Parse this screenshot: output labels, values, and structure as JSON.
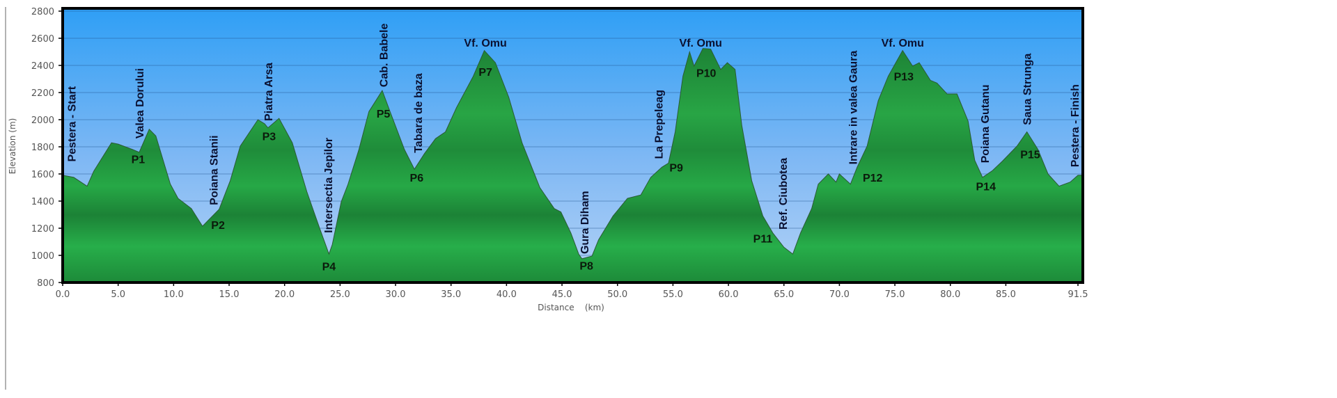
{
  "chart_data": {
    "type": "area",
    "xlabel": "Distance    (km)",
    "ylabel": "Elevation (m)",
    "xlim": [
      0,
      91.5
    ],
    "ylim": [
      800,
      2800
    ],
    "x_ticks": [
      "0.0",
      "5.0",
      "10.0",
      "15.0",
      "20.0",
      "25.0",
      "30.0",
      "35.0",
      "40.0",
      "45.0",
      "50.0",
      "55.0",
      "60.0",
      "65.0",
      "70.0",
      "75.0",
      "80.0",
      "85.0",
      "91.5"
    ],
    "x_tick_values": [
      0,
      5,
      10,
      15,
      20,
      25,
      30,
      35,
      40,
      45,
      50,
      55,
      60,
      65,
      70,
      75,
      80,
      85,
      91.5
    ],
    "y_ticks": [
      800,
      1000,
      1200,
      1400,
      1600,
      1800,
      2000,
      2200,
      2400,
      2600,
      2800
    ],
    "grid": true,
    "colors": {
      "sky_top": "#2f9ff5",
      "sky_bottom": "#a9cdf6",
      "fill_light": "#25b04a",
      "fill_dark": "#1a7d33",
      "line": "#2b5a35"
    },
    "profile": {
      "km": [
        0,
        1,
        2.2,
        2.8,
        4.4,
        5.0,
        6.3,
        6.9,
        7.8,
        8.4,
        9.7,
        10.4,
        11.6,
        12.6,
        13.2,
        14.1,
        15.1,
        16,
        17.6,
        18.2,
        18.5,
        19.5,
        20,
        20.7,
        22,
        23.2,
        24,
        24.3,
        25.1,
        25.7,
        26.7,
        27.6,
        28.8,
        29.5,
        30.8,
        31.7,
        32.6,
        33.6,
        34.5,
        35.5,
        37,
        38,
        39,
        40.2,
        41.4,
        43,
        44.3,
        44.9,
        45.8,
        46.5,
        46.8,
        47.7,
        48.3,
        49.6,
        50.9,
        52.1,
        53,
        54,
        54.6,
        55.2,
        55.9,
        56.5,
        56.9,
        57.7,
        58.4,
        59.3,
        59.9,
        60.6,
        61.2,
        62.1,
        63.1,
        64,
        65,
        65.8,
        66.5,
        67.5,
        68.1,
        69,
        69.7,
        70,
        71,
        71.6,
        72.5,
        73.5,
        74.4,
        75.7,
        76.6,
        77.2,
        78.2,
        78.8,
        79.7,
        80.6,
        81.6,
        82.2,
        82.9,
        83.8,
        84.7,
        86,
        86.9,
        87.9,
        88.8,
        89.8,
        90.8,
        91.5
      ],
      "elevation": [
        1590,
        1575,
        1510,
        1620,
        1830,
        1820,
        1780,
        1760,
        1930,
        1880,
        1525,
        1420,
        1345,
        1215,
        1265,
        1340,
        1550,
        1805,
        2000,
        1970,
        1940,
        2010,
        1935,
        1830,
        1470,
        1190,
        1010,
        1080,
        1395,
        1520,
        1780,
        2060,
        2215,
        2060,
        1780,
        1635,
        1750,
        1860,
        1910,
        2090,
        2320,
        2510,
        2420,
        2165,
        1830,
        1500,
        1345,
        1320,
        1165,
        1010,
        975,
        995,
        1115,
        1290,
        1420,
        1445,
        1575,
        1650,
        1680,
        1910,
        2320,
        2500,
        2395,
        2525,
        2520,
        2370,
        2420,
        2370,
        1960,
        1550,
        1290,
        1165,
        1060,
        1010,
        1165,
        1345,
        1525,
        1600,
        1540,
        1600,
        1525,
        1650,
        1805,
        2140,
        2320,
        2510,
        2395,
        2420,
        2290,
        2270,
        2190,
        2190,
        1990,
        1700,
        1575,
        1625,
        1695,
        1805,
        1910,
        1780,
        1600,
        1510,
        1540,
        1590
      ]
    },
    "place_labels": [
      {
        "text": "Pestera - Start",
        "km": 0.8,
        "elevation": 1690,
        "orientation": "vertical"
      },
      {
        "text": "Valea Dorului",
        "km": 6.9,
        "elevation": 1860,
        "orientation": "vertical"
      },
      {
        "text": "Poiana Stanii",
        "km": 13.6,
        "elevation": 1370,
        "orientation": "vertical"
      },
      {
        "text": "Piatra Arsa",
        "km": 18.5,
        "elevation": 1990,
        "orientation": "vertical"
      },
      {
        "text": "Intersectia Jepilor",
        "km": 23.9,
        "elevation": 1165,
        "orientation": "vertical"
      },
      {
        "text": "Cab. Babele",
        "km": 28.9,
        "elevation": 2240,
        "orientation": "vertical"
      },
      {
        "text": "Tabara de baza",
        "km": 32.0,
        "elevation": 1755,
        "orientation": "vertical"
      },
      {
        "text": "Vf. Omu",
        "km": 38.1,
        "elevation": 2570,
        "orientation": "horizontal"
      },
      {
        "text": "Gura Diham",
        "km": 47.0,
        "elevation": 1010,
        "orientation": "vertical"
      },
      {
        "text": "La Prepeleag",
        "km": 53.7,
        "elevation": 1710,
        "orientation": "vertical"
      },
      {
        "text": "Vf. Omu",
        "km": 57.5,
        "elevation": 2570,
        "orientation": "horizontal"
      },
      {
        "text": "Ref. Ciubotea",
        "km": 64.9,
        "elevation": 1190,
        "orientation": "vertical"
      },
      {
        "text": "Intrare in valea Gaura",
        "km": 71.2,
        "elevation": 1670,
        "orientation": "vertical"
      },
      {
        "text": "Vf. Omu",
        "km": 75.7,
        "elevation": 2570,
        "orientation": "horizontal"
      },
      {
        "text": "Poiana Gutanu",
        "km": 83.1,
        "elevation": 1680,
        "orientation": "vertical"
      },
      {
        "text": "Saua Strunga",
        "km": 86.9,
        "elevation": 1960,
        "orientation": "vertical"
      },
      {
        "text": "Pestera - Finish",
        "km": 91.2,
        "elevation": 1650,
        "orientation": "vertical"
      }
    ],
    "checkpoints": [
      {
        "text": "P1",
        "km": 6.8,
        "elevation": 1710
      },
      {
        "text": "P2",
        "km": 14.0,
        "elevation": 1225
      },
      {
        "text": "P3",
        "km": 18.6,
        "elevation": 1880
      },
      {
        "text": "P4",
        "km": 24.0,
        "elevation": 920
      },
      {
        "text": "P5",
        "km": 28.9,
        "elevation": 2045
      },
      {
        "text": "P6",
        "km": 31.9,
        "elevation": 1575
      },
      {
        "text": "P7",
        "km": 38.1,
        "elevation": 2355
      },
      {
        "text": "P8",
        "km": 47.2,
        "elevation": 925
      },
      {
        "text": "P9",
        "km": 55.3,
        "elevation": 1650
      },
      {
        "text": "P10",
        "km": 58.0,
        "elevation": 2345
      },
      {
        "text": "P11",
        "km": 63.1,
        "elevation": 1125
      },
      {
        "text": "P12",
        "km": 73.0,
        "elevation": 1575
      },
      {
        "text": "P13",
        "km": 75.8,
        "elevation": 2320
      },
      {
        "text": "P14",
        "km": 83.2,
        "elevation": 1510
      },
      {
        "text": "P15",
        "km": 87.2,
        "elevation": 1745
      }
    ]
  }
}
